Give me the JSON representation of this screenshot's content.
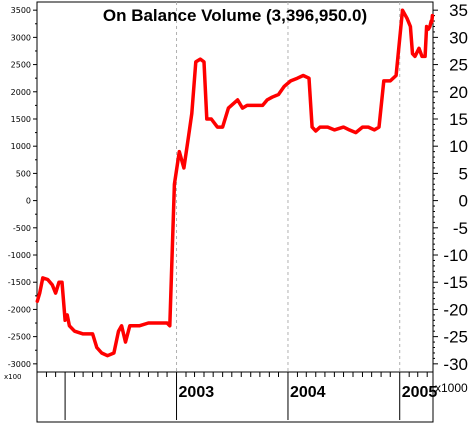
{
  "chart_data": {
    "type": "line",
    "title": "On Balance Volume (3,396,950.0)",
    "x_tick_labels": [
      "2003",
      "2004",
      "2005"
    ],
    "x_ticks_dates": [
      "2003-01-01",
      "2004-01-01",
      "2005-01-01"
    ],
    "y_left_ticks": [
      3500,
      3000,
      2500,
      2000,
      1500,
      1000,
      500,
      0,
      -500,
      -1000,
      -1500,
      -2000,
      -2500,
      -3000
    ],
    "y_right_ticks": [
      35,
      30,
      25,
      20,
      15,
      10,
      5,
      0,
      -5,
      -10,
      -15,
      -20,
      -25,
      -30
    ],
    "y_left_unit": "x100",
    "y_right_unit": "x1000",
    "ylim": [
      -3150,
      3650
    ],
    "xlim": [
      "2001-10-01",
      "2005-04-20"
    ],
    "grid": "vertical dashed at year boundaries",
    "series": [
      {
        "color": "#ff0000",
        "points": [
          [
            "2001-10-02",
            -1850
          ],
          [
            "2001-10-10",
            -1700
          ],
          [
            "2001-10-20",
            -1420
          ],
          [
            "2001-11-05",
            -1450
          ],
          [
            "2001-11-20",
            -1550
          ],
          [
            "2001-12-01",
            -1700
          ],
          [
            "2001-12-12",
            -1500
          ],
          [
            "2001-12-22",
            -1500
          ],
          [
            "2002-01-01",
            -2200
          ],
          [
            "2002-01-08",
            -2100
          ],
          [
            "2002-01-15",
            -2300
          ],
          [
            "2002-02-01",
            -2400
          ],
          [
            "2002-03-01",
            -2450
          ],
          [
            "2002-04-01",
            -2450
          ],
          [
            "2002-04-15",
            -2700
          ],
          [
            "2002-05-01",
            -2800
          ],
          [
            "2002-05-20",
            -2850
          ],
          [
            "2002-06-10",
            -2800
          ],
          [
            "2002-06-25",
            -2400
          ],
          [
            "2002-07-05",
            -2300
          ],
          [
            "2002-07-18",
            -2600
          ],
          [
            "2002-08-01",
            -2300
          ],
          [
            "2002-09-01",
            -2300
          ],
          [
            "2002-10-01",
            -2250
          ],
          [
            "2002-11-01",
            -2250
          ],
          [
            "2002-12-01",
            -2250
          ],
          [
            "2002-12-10",
            -2300
          ],
          [
            "2002-12-25",
            300
          ],
          [
            "2003-01-10",
            900
          ],
          [
            "2003-01-25",
            600
          ],
          [
            "2003-02-10",
            1200
          ],
          [
            "2003-02-20",
            1600
          ],
          [
            "2003-03-05",
            2550
          ],
          [
            "2003-03-20",
            2600
          ],
          [
            "2003-04-01",
            2550
          ],
          [
            "2003-04-10",
            1500
          ],
          [
            "2003-04-25",
            1500
          ],
          [
            "2003-05-15",
            1350
          ],
          [
            "2003-06-01",
            1350
          ],
          [
            "2003-06-20",
            1700
          ],
          [
            "2003-07-20",
            1850
          ],
          [
            "2003-08-05",
            1700
          ],
          [
            "2003-08-20",
            1750
          ],
          [
            "2003-09-15",
            1750
          ],
          [
            "2003-10-10",
            1750
          ],
          [
            "2003-10-25",
            1850
          ],
          [
            "2003-11-10",
            1900
          ],
          [
            "2003-12-01",
            1950
          ],
          [
            "2003-12-20",
            2100
          ],
          [
            "2004-01-10",
            2200
          ],
          [
            "2004-02-01",
            2250
          ],
          [
            "2004-02-20",
            2300
          ],
          [
            "2004-03-10",
            2250
          ],
          [
            "2004-03-20",
            1350
          ],
          [
            "2004-04-01",
            1280
          ],
          [
            "2004-04-15",
            1350
          ],
          [
            "2004-05-10",
            1350
          ],
          [
            "2004-06-01",
            1300
          ],
          [
            "2004-07-01",
            1350
          ],
          [
            "2004-07-20",
            1300
          ],
          [
            "2004-08-10",
            1250
          ],
          [
            "2004-09-01",
            1350
          ],
          [
            "2004-09-20",
            1350
          ],
          [
            "2004-10-10",
            1300
          ],
          [
            "2004-10-25",
            1350
          ],
          [
            "2004-11-10",
            2200
          ],
          [
            "2004-12-01",
            2200
          ],
          [
            "2004-12-20",
            2300
          ],
          [
            "2005-01-10",
            3500
          ],
          [
            "2005-01-25",
            3350
          ],
          [
            "2005-02-05",
            3200
          ],
          [
            "2005-02-12",
            2700
          ],
          [
            "2005-02-20",
            2650
          ],
          [
            "2005-03-05",
            2800
          ],
          [
            "2005-03-15",
            2650
          ],
          [
            "2005-03-25",
            2650
          ],
          [
            "2005-03-30",
            3200
          ],
          [
            "2005-04-05",
            3150
          ],
          [
            "2005-04-10",
            3200
          ],
          [
            "2005-04-14",
            3300
          ],
          [
            "2005-04-16",
            3280
          ],
          [
            "2005-04-18",
            3400
          ]
        ]
      }
    ]
  }
}
